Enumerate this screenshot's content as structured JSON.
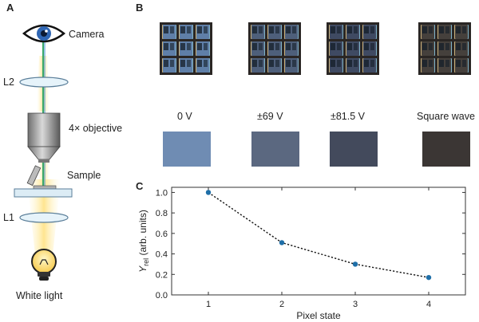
{
  "panels": {
    "a": "A",
    "b": "B",
    "c": "C"
  },
  "setup": {
    "camera": "Camera",
    "l2": "L2",
    "objective": "4× objective",
    "sample": "Sample",
    "l1": "L1",
    "source": "White light"
  },
  "states": [
    {
      "label": "0 V",
      "swatch": "#6f8cb3",
      "micro_tint": "#5f7fa8"
    },
    {
      "label": "±69 V",
      "swatch": "#5b6880",
      "micro_tint": "#4e5f7a"
    },
    {
      "label": "±81.5 V",
      "swatch": "#434a5c",
      "micro_tint": "#3f4a62"
    },
    {
      "label": "Square wave",
      "swatch": "#3b3634",
      "micro_tint": "#45403c"
    }
  ],
  "chart_data": {
    "type": "scatter",
    "x": [
      1,
      2,
      3,
      4
    ],
    "y": [
      1.0,
      0.51,
      0.3,
      0.17
    ],
    "xlabel": "Pixel state",
    "ylabel_main": "Y",
    "ylabel_sub": "rel",
    "ylabel_rest": " (arb. units)",
    "xlim": [
      0.5,
      4.5
    ],
    "ylim": [
      0,
      1.05
    ],
    "xticks": [
      1,
      2,
      3,
      4
    ],
    "yticks": [
      0.0,
      0.2,
      0.4,
      0.6,
      0.8,
      1.0
    ],
    "ytick_labels": [
      "0.0",
      "0.2",
      "0.4",
      "0.6",
      "0.8",
      "1.0"
    ],
    "line_style": "dotted",
    "marker_color": "#1f6fa8"
  }
}
